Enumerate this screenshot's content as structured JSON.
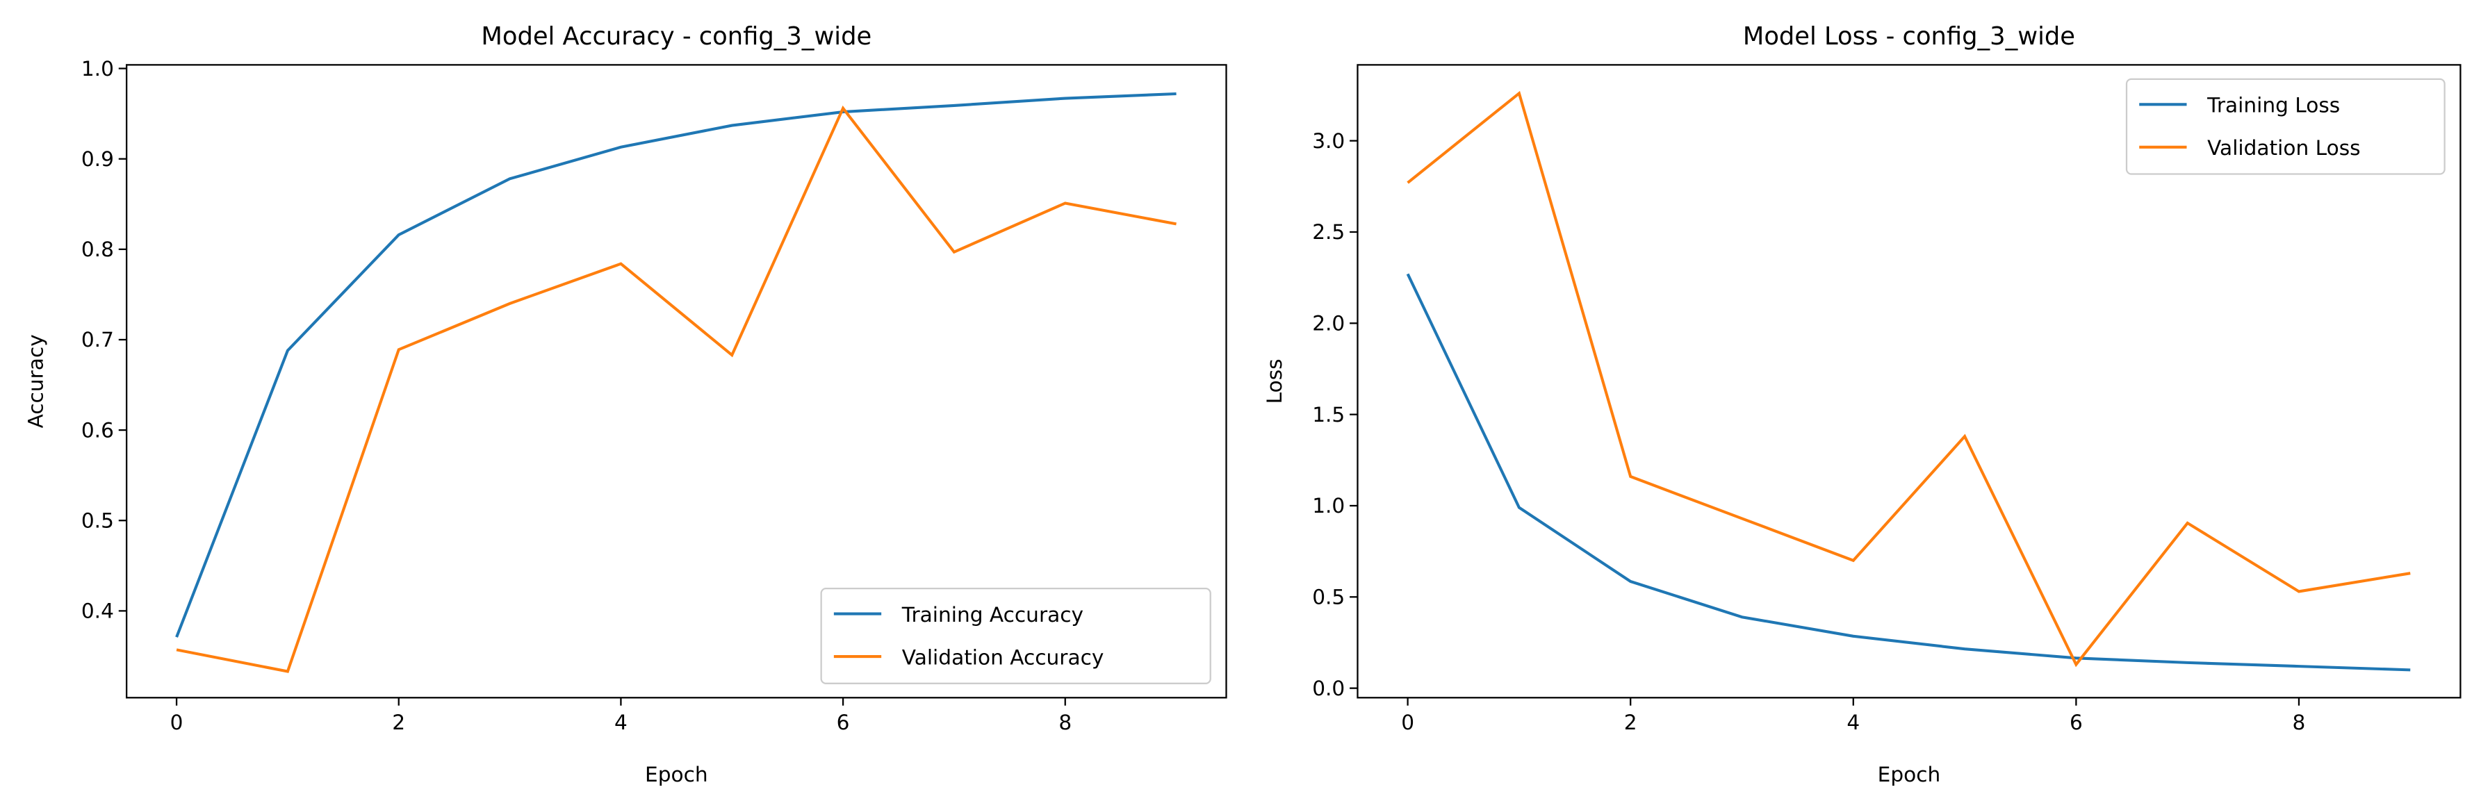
{
  "chart_data": [
    {
      "type": "line",
      "title": "Model Accuracy - config_3_wide",
      "x_label": "Epoch",
      "y_label": "Accuracy",
      "x": [
        0,
        1,
        2,
        3,
        4,
        5,
        6,
        7,
        8,
        9
      ],
      "series": [
        {
          "name": "Training Accuracy",
          "color": "#1f77b4",
          "values": [
            0.371,
            0.688,
            0.816,
            0.878,
            0.913,
            0.937,
            0.952,
            0.959,
            0.967,
            0.972
          ]
        },
        {
          "name": "Validation Accuracy",
          "color": "#ff7f0e",
          "values": [
            0.357,
            0.333,
            0.689,
            0.74,
            0.784,
            0.683,
            0.956,
            0.797,
            0.851,
            0.828
          ]
        }
      ],
      "xlim": [
        -0.45,
        9.45
      ],
      "xticks": [
        0,
        2,
        4,
        6,
        8
      ],
      "ylim": [
        0.304,
        1.004
      ],
      "yticks": [
        0.4,
        0.5,
        0.6,
        0.7,
        0.8,
        0.9,
        {
          "value": 1.0,
          "label": "1.0"
        }
      ],
      "legend": "lower right"
    },
    {
      "type": "line",
      "title": "Model Loss - config_3_wide",
      "x_label": "Epoch",
      "y_label": "Loss",
      "x": [
        0,
        1,
        2,
        3,
        4,
        5,
        6,
        7,
        8,
        9
      ],
      "series": [
        {
          "name": "Training Loss",
          "color": "#1f77b4",
          "values": [
            2.27,
            0.99,
            0.585,
            0.39,
            0.285,
            0.215,
            0.165,
            0.14,
            0.12,
            0.1
          ]
        },
        {
          "name": "Validation Loss",
          "color": "#ff7f0e",
          "values": [
            2.77,
            3.26,
            1.16,
            0.93,
            0.7,
            1.38,
            0.13,
            0.905,
            0.53,
            0.63
          ]
        }
      ],
      "xlim": [
        -0.45,
        9.45
      ],
      "xticks": [
        0,
        2,
        4,
        6,
        8
      ],
      "ylim": [
        -0.052,
        3.416
      ],
      "yticks": [
        {
          "value": 0.0,
          "label": "0.0"
        },
        0.5,
        {
          "value": 1.0,
          "label": "1.0"
        },
        1.5,
        {
          "value": 2.0,
          "label": "2.0"
        },
        2.5,
        {
          "value": 3.0,
          "label": "3.0"
        }
      ],
      "legend": "upper right"
    }
  ]
}
